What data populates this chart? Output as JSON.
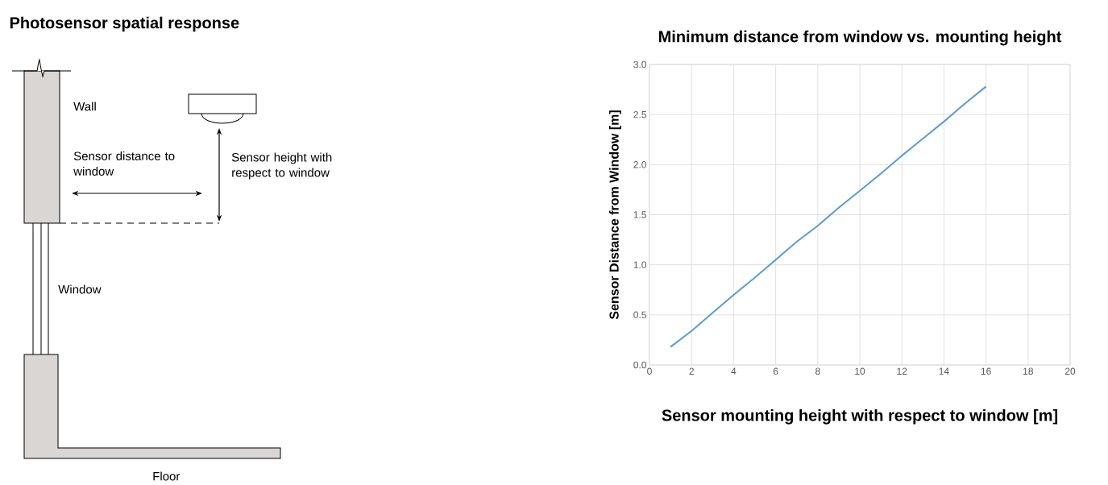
{
  "chart_data": [
    {
      "type": "other",
      "title": "Photosensor spatial response",
      "annotations": [
        "Wall",
        "Sensor distance to window",
        "Sensor height with respect to window",
        "Window",
        "Floor"
      ]
    },
    {
      "type": "line",
      "title": "Minimum distance from window vs. mounting height",
      "xlabel": "Sensor mounting height with respect to window [m]",
      "ylabel": "Sensor Distance from Window [m]",
      "x": [
        1,
        2,
        3,
        4,
        5,
        6,
        7,
        8,
        9,
        10,
        11,
        12,
        13,
        14,
        15,
        16
      ],
      "values": [
        0.18,
        0.34,
        0.52,
        0.7,
        0.87,
        1.05,
        1.23,
        1.39,
        1.57,
        1.74,
        1.91,
        2.09,
        2.26,
        2.43,
        2.61,
        2.78
      ],
      "color": "#5b9bd5",
      "xlim": [
        0,
        20
      ],
      "ylim": [
        0,
        3
      ],
      "xticks": [
        0,
        2,
        4,
        6,
        8,
        10,
        12,
        14,
        16,
        18,
        20
      ],
      "yticks": [
        {
          "value": 0,
          "label": "0.0"
        },
        {
          "value": 0.5,
          "label": "0.5"
        },
        {
          "value": 1,
          "label": "1.0"
        },
        {
          "value": 1.5,
          "label": "1.5"
        },
        {
          "value": 2,
          "label": "2.0"
        },
        {
          "value": 2.5,
          "label": "2.5"
        },
        {
          "value": 3,
          "label": "3.0"
        }
      ],
      "grid": true
    }
  ]
}
